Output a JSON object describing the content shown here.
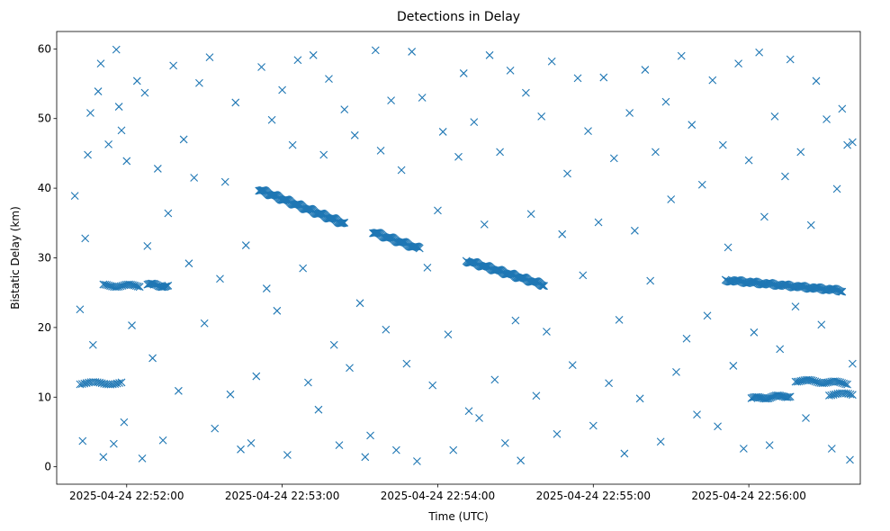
{
  "chart_data": {
    "type": "scatter",
    "title": "Detections in Delay",
    "xlabel": "Time (UTC)",
    "ylabel": "Bistatic Delay (km)",
    "x_unit": "datetime (UTC)",
    "xlim": [
      "2025-04-24 22:51:33",
      "2025-04-24 22:56:43"
    ],
    "ylim": [
      -2.5,
      62.5
    ],
    "x_ticks": [
      "2025-04-24 22:52:00",
      "2025-04-24 22:53:00",
      "2025-04-24 22:54:00",
      "2025-04-24 22:55:00",
      "2025-04-24 22:56:00"
    ],
    "y_ticks": [
      0,
      10,
      20,
      30,
      40,
      50,
      60
    ],
    "grid": false,
    "marker": "x",
    "color": "#1f77b4",
    "series": [
      {
        "tracks": [
          {
            "start": "2025-04-24 22:52:51",
            "end": "2025-04-24 22:53:24",
            "y_start": 39.8,
            "y_end": 34.9,
            "count": 110
          },
          {
            "start": "2025-04-24 22:53:35",
            "end": "2025-04-24 22:53:53",
            "y_start": 33.7,
            "y_end": 31.3,
            "count": 55
          },
          {
            "start": "2025-04-24 22:54:11",
            "end": "2025-04-24 22:54:41",
            "y_start": 29.6,
            "y_end": 26.1,
            "count": 95
          },
          {
            "start": "2025-04-24 22:55:51",
            "end": "2025-04-24 22:56:36",
            "y_start": 26.8,
            "y_end": 25.3,
            "count": 110
          },
          {
            "start": "2025-04-24 22:51:51",
            "end": "2025-04-24 22:52:05",
            "y_start": 26.0,
            "y_end": 26.0,
            "count": 22
          },
          {
            "start": "2025-04-24 22:52:08",
            "end": "2025-04-24 22:52:16",
            "y_start": 26.2,
            "y_end": 25.9,
            "count": 18
          },
          {
            "start": "2025-04-24 22:51:42",
            "end": "2025-04-24 22:51:58",
            "y_start": 12.0,
            "y_end": 12.0,
            "count": 20
          },
          {
            "start": "2025-04-24 22:56:01",
            "end": "2025-04-24 22:56:16",
            "y_start": 9.8,
            "y_end": 10.2,
            "count": 28
          },
          {
            "start": "2025-04-24 22:56:18",
            "end": "2025-04-24 22:56:38",
            "y_start": 12.4,
            "y_end": 12.0,
            "count": 30
          },
          {
            "start": "2025-04-24 22:56:31",
            "end": "2025-04-24 22:56:40",
            "y_start": 10.4,
            "y_end": 10.4,
            "count": 12
          }
        ],
        "scatter_points": [
          [
            "2025-04-24 22:51:40",
            38.9
          ],
          [
            "2025-04-24 22:51:42",
            22.6
          ],
          [
            "2025-04-24 22:51:43",
            3.7
          ],
          [
            "2025-04-24 22:51:44",
            32.8
          ],
          [
            "2025-04-24 22:51:45",
            44.8
          ],
          [
            "2025-04-24 22:51:46",
            50.8
          ],
          [
            "2025-04-24 22:51:47",
            17.5
          ],
          [
            "2025-04-24 22:51:49",
            53.9
          ],
          [
            "2025-04-24 22:51:50",
            57.9
          ],
          [
            "2025-04-24 22:51:51",
            1.4
          ],
          [
            "2025-04-24 22:51:53",
            46.3
          ],
          [
            "2025-04-24 22:51:55",
            3.3
          ],
          [
            "2025-04-24 22:51:56",
            59.9
          ],
          [
            "2025-04-24 22:51:57",
            51.7
          ],
          [
            "2025-04-24 22:51:58",
            48.3
          ],
          [
            "2025-04-24 22:51:59",
            6.4
          ],
          [
            "2025-04-24 22:52:00",
            43.9
          ],
          [
            "2025-04-24 22:52:02",
            20.3
          ],
          [
            "2025-04-24 22:52:04",
            55.4
          ],
          [
            "2025-04-24 22:52:06",
            1.2
          ],
          [
            "2025-04-24 22:52:07",
            53.7
          ],
          [
            "2025-04-24 22:52:08",
            31.7
          ],
          [
            "2025-04-24 22:52:10",
            15.6
          ],
          [
            "2025-04-24 22:52:12",
            42.8
          ],
          [
            "2025-04-24 22:52:14",
            3.8
          ],
          [
            "2025-04-24 22:52:16",
            36.4
          ],
          [
            "2025-04-24 22:52:18",
            57.6
          ],
          [
            "2025-04-24 22:52:20",
            10.9
          ],
          [
            "2025-04-24 22:52:22",
            47.0
          ],
          [
            "2025-04-24 22:52:24",
            29.2
          ],
          [
            "2025-04-24 22:52:26",
            41.5
          ],
          [
            "2025-04-24 22:52:28",
            55.1
          ],
          [
            "2025-04-24 22:52:30",
            20.6
          ],
          [
            "2025-04-24 22:52:32",
            58.8
          ],
          [
            "2025-04-24 22:52:34",
            5.5
          ],
          [
            "2025-04-24 22:52:36",
            27.0
          ],
          [
            "2025-04-24 22:52:38",
            40.9
          ],
          [
            "2025-04-24 22:52:40",
            10.4
          ],
          [
            "2025-04-24 22:52:42",
            52.3
          ],
          [
            "2025-04-24 22:52:44",
            2.5
          ],
          [
            "2025-04-24 22:52:46",
            31.8
          ],
          [
            "2025-04-24 22:52:48",
            3.4
          ],
          [
            "2025-04-24 22:52:50",
            13.0
          ],
          [
            "2025-04-24 22:52:52",
            57.4
          ],
          [
            "2025-04-24 22:52:54",
            25.6
          ],
          [
            "2025-04-24 22:52:56",
            49.8
          ],
          [
            "2025-04-24 22:52:58",
            22.4
          ],
          [
            "2025-04-24 22:53:00",
            54.1
          ],
          [
            "2025-04-24 22:53:02",
            1.7
          ],
          [
            "2025-04-24 22:53:04",
            46.2
          ],
          [
            "2025-04-24 22:53:06",
            58.4
          ],
          [
            "2025-04-24 22:53:08",
            28.5
          ],
          [
            "2025-04-24 22:53:10",
            12.1
          ],
          [
            "2025-04-24 22:53:12",
            59.1
          ],
          [
            "2025-04-24 22:53:14",
            8.2
          ],
          [
            "2025-04-24 22:53:16",
            44.8
          ],
          [
            "2025-04-24 22:53:18",
            55.7
          ],
          [
            "2025-04-24 22:53:20",
            17.5
          ],
          [
            "2025-04-24 22:53:22",
            3.1
          ],
          [
            "2025-04-24 22:53:24",
            51.3
          ],
          [
            "2025-04-24 22:53:26",
            14.2
          ],
          [
            "2025-04-24 22:53:28",
            47.6
          ],
          [
            "2025-04-24 22:53:30",
            23.5
          ],
          [
            "2025-04-24 22:53:32",
            1.4
          ],
          [
            "2025-04-24 22:53:34",
            4.5
          ],
          [
            "2025-04-24 22:53:36",
            59.8
          ],
          [
            "2025-04-24 22:53:38",
            45.4
          ],
          [
            "2025-04-24 22:53:40",
            19.7
          ],
          [
            "2025-04-24 22:53:42",
            52.6
          ],
          [
            "2025-04-24 22:53:44",
            2.4
          ],
          [
            "2025-04-24 22:53:46",
            42.6
          ],
          [
            "2025-04-24 22:53:48",
            14.8
          ],
          [
            "2025-04-24 22:53:50",
            59.6
          ],
          [
            "2025-04-24 22:53:52",
            0.8
          ],
          [
            "2025-04-24 22:53:54",
            53.0
          ],
          [
            "2025-04-24 22:53:56",
            28.6
          ],
          [
            "2025-04-24 22:53:58",
            11.7
          ],
          [
            "2025-04-24 22:54:00",
            36.8
          ],
          [
            "2025-04-24 22:54:02",
            48.1
          ],
          [
            "2025-04-24 22:54:04",
            19.0
          ],
          [
            "2025-04-24 22:54:06",
            2.4
          ],
          [
            "2025-04-24 22:54:08",
            44.5
          ],
          [
            "2025-04-24 22:54:10",
            56.5
          ],
          [
            "2025-04-24 22:54:12",
            8.0
          ],
          [
            "2025-04-24 22:54:14",
            49.5
          ],
          [
            "2025-04-24 22:54:16",
            7.0
          ],
          [
            "2025-04-24 22:54:18",
            34.8
          ],
          [
            "2025-04-24 22:54:20",
            59.1
          ],
          [
            "2025-04-24 22:54:22",
            12.5
          ],
          [
            "2025-04-24 22:54:24",
            45.2
          ],
          [
            "2025-04-24 22:54:26",
            3.4
          ],
          [
            "2025-04-24 22:54:28",
            56.9
          ],
          [
            "2025-04-24 22:54:30",
            21.0
          ],
          [
            "2025-04-24 22:54:32",
            0.9
          ],
          [
            "2025-04-24 22:54:34",
            53.7
          ],
          [
            "2025-04-24 22:54:36",
            36.3
          ],
          [
            "2025-04-24 22:54:38",
            10.2
          ],
          [
            "2025-04-24 22:54:40",
            50.3
          ],
          [
            "2025-04-24 22:54:42",
            19.4
          ],
          [
            "2025-04-24 22:54:44",
            58.2
          ],
          [
            "2025-04-24 22:54:46",
            4.7
          ],
          [
            "2025-04-24 22:54:48",
            33.4
          ],
          [
            "2025-04-24 22:54:50",
            42.1
          ],
          [
            "2025-04-24 22:54:52",
            14.6
          ],
          [
            "2025-04-24 22:54:54",
            55.8
          ],
          [
            "2025-04-24 22:54:56",
            27.5
          ],
          [
            "2025-04-24 22:54:58",
            48.2
          ],
          [
            "2025-04-24 22:55:00",
            5.9
          ],
          [
            "2025-04-24 22:55:02",
            35.1
          ],
          [
            "2025-04-24 22:55:04",
            55.9
          ],
          [
            "2025-04-24 22:55:06",
            12.0
          ],
          [
            "2025-04-24 22:55:08",
            44.3
          ],
          [
            "2025-04-24 22:55:10",
            21.1
          ],
          [
            "2025-04-24 22:55:12",
            1.9
          ],
          [
            "2025-04-24 22:55:14",
            50.8
          ],
          [
            "2025-04-24 22:55:16",
            33.9
          ],
          [
            "2025-04-24 22:55:18",
            9.8
          ],
          [
            "2025-04-24 22:55:20",
            57.0
          ],
          [
            "2025-04-24 22:55:22",
            26.7
          ],
          [
            "2025-04-24 22:55:24",
            45.2
          ],
          [
            "2025-04-24 22:55:26",
            3.6
          ],
          [
            "2025-04-24 22:55:28",
            52.4
          ],
          [
            "2025-04-24 22:55:30",
            38.4
          ],
          [
            "2025-04-24 22:55:32",
            13.6
          ],
          [
            "2025-04-24 22:55:34",
            59.0
          ],
          [
            "2025-04-24 22:55:36",
            18.4
          ],
          [
            "2025-04-24 22:55:38",
            49.1
          ],
          [
            "2025-04-24 22:55:40",
            7.5
          ],
          [
            "2025-04-24 22:55:42",
            40.5
          ],
          [
            "2025-04-24 22:55:44",
            21.7
          ],
          [
            "2025-04-24 22:55:46",
            55.5
          ],
          [
            "2025-04-24 22:55:48",
            5.8
          ],
          [
            "2025-04-24 22:55:50",
            46.2
          ],
          [
            "2025-04-24 22:55:52",
            31.5
          ],
          [
            "2025-04-24 22:55:54",
            14.5
          ],
          [
            "2025-04-24 22:55:56",
            57.9
          ],
          [
            "2025-04-24 22:55:58",
            2.6
          ],
          [
            "2025-04-24 22:56:00",
            44.0
          ],
          [
            "2025-04-24 22:56:02",
            19.3
          ],
          [
            "2025-04-24 22:56:04",
            59.5
          ],
          [
            "2025-04-24 22:56:06",
            35.9
          ],
          [
            "2025-04-24 22:56:08",
            3.1
          ],
          [
            "2025-04-24 22:56:10",
            50.3
          ],
          [
            "2025-04-24 22:56:12",
            16.9
          ],
          [
            "2025-04-24 22:56:14",
            41.7
          ],
          [
            "2025-04-24 22:56:16",
            58.5
          ],
          [
            "2025-04-24 22:56:18",
            23.0
          ],
          [
            "2025-04-24 22:56:20",
            45.2
          ],
          [
            "2025-04-24 22:56:22",
            7.0
          ],
          [
            "2025-04-24 22:56:24",
            34.7
          ],
          [
            "2025-04-24 22:56:26",
            55.4
          ],
          [
            "2025-04-24 22:56:28",
            20.4
          ],
          [
            "2025-04-24 22:56:30",
            49.9
          ],
          [
            "2025-04-24 22:56:32",
            2.6
          ],
          [
            "2025-04-24 22:56:34",
            39.9
          ],
          [
            "2025-04-24 22:56:36",
            51.4
          ],
          [
            "2025-04-24 22:56:38",
            46.2
          ],
          [
            "2025-04-24 22:56:39",
            1.0
          ],
          [
            "2025-04-24 22:56:40",
            46.6
          ],
          [
            "2025-04-24 22:56:40",
            14.8
          ]
        ]
      }
    ]
  }
}
